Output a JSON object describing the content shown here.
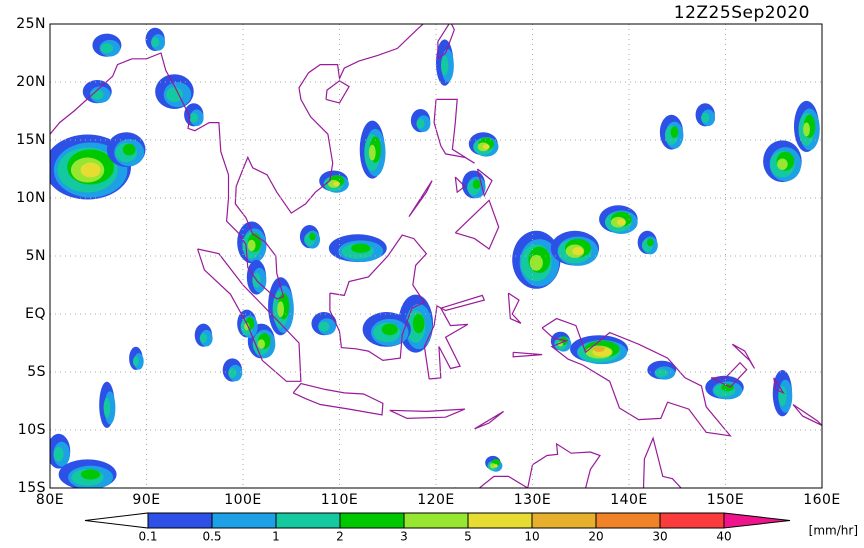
{
  "header": {
    "timestamp": "12Z25Sep2020"
  },
  "lat_labels": [
    "25N",
    "20N",
    "15N",
    "10N",
    "5N",
    "EQ",
    "5S",
    "10S",
    "15S"
  ],
  "lon_labels": [
    "80E",
    "90E",
    "100E",
    "110E",
    "120E",
    "130E",
    "140E",
    "150E",
    "160E"
  ],
  "colorbar": {
    "labels": [
      "0.1",
      "0.5",
      "1",
      "2",
      "3",
      "5",
      "10",
      "20",
      "30",
      "40"
    ],
    "unit": "[mm/hr]",
    "colors": [
      "#2d50e6",
      "#1ea0e6",
      "#14c8a0",
      "#00c800",
      "#96e632",
      "#e6dc32",
      "#e6af2d",
      "#f08228",
      "#fa3c3c"
    ],
    "over_color": "#f0148c"
  },
  "coast_color": "#9a1a9a"
}
